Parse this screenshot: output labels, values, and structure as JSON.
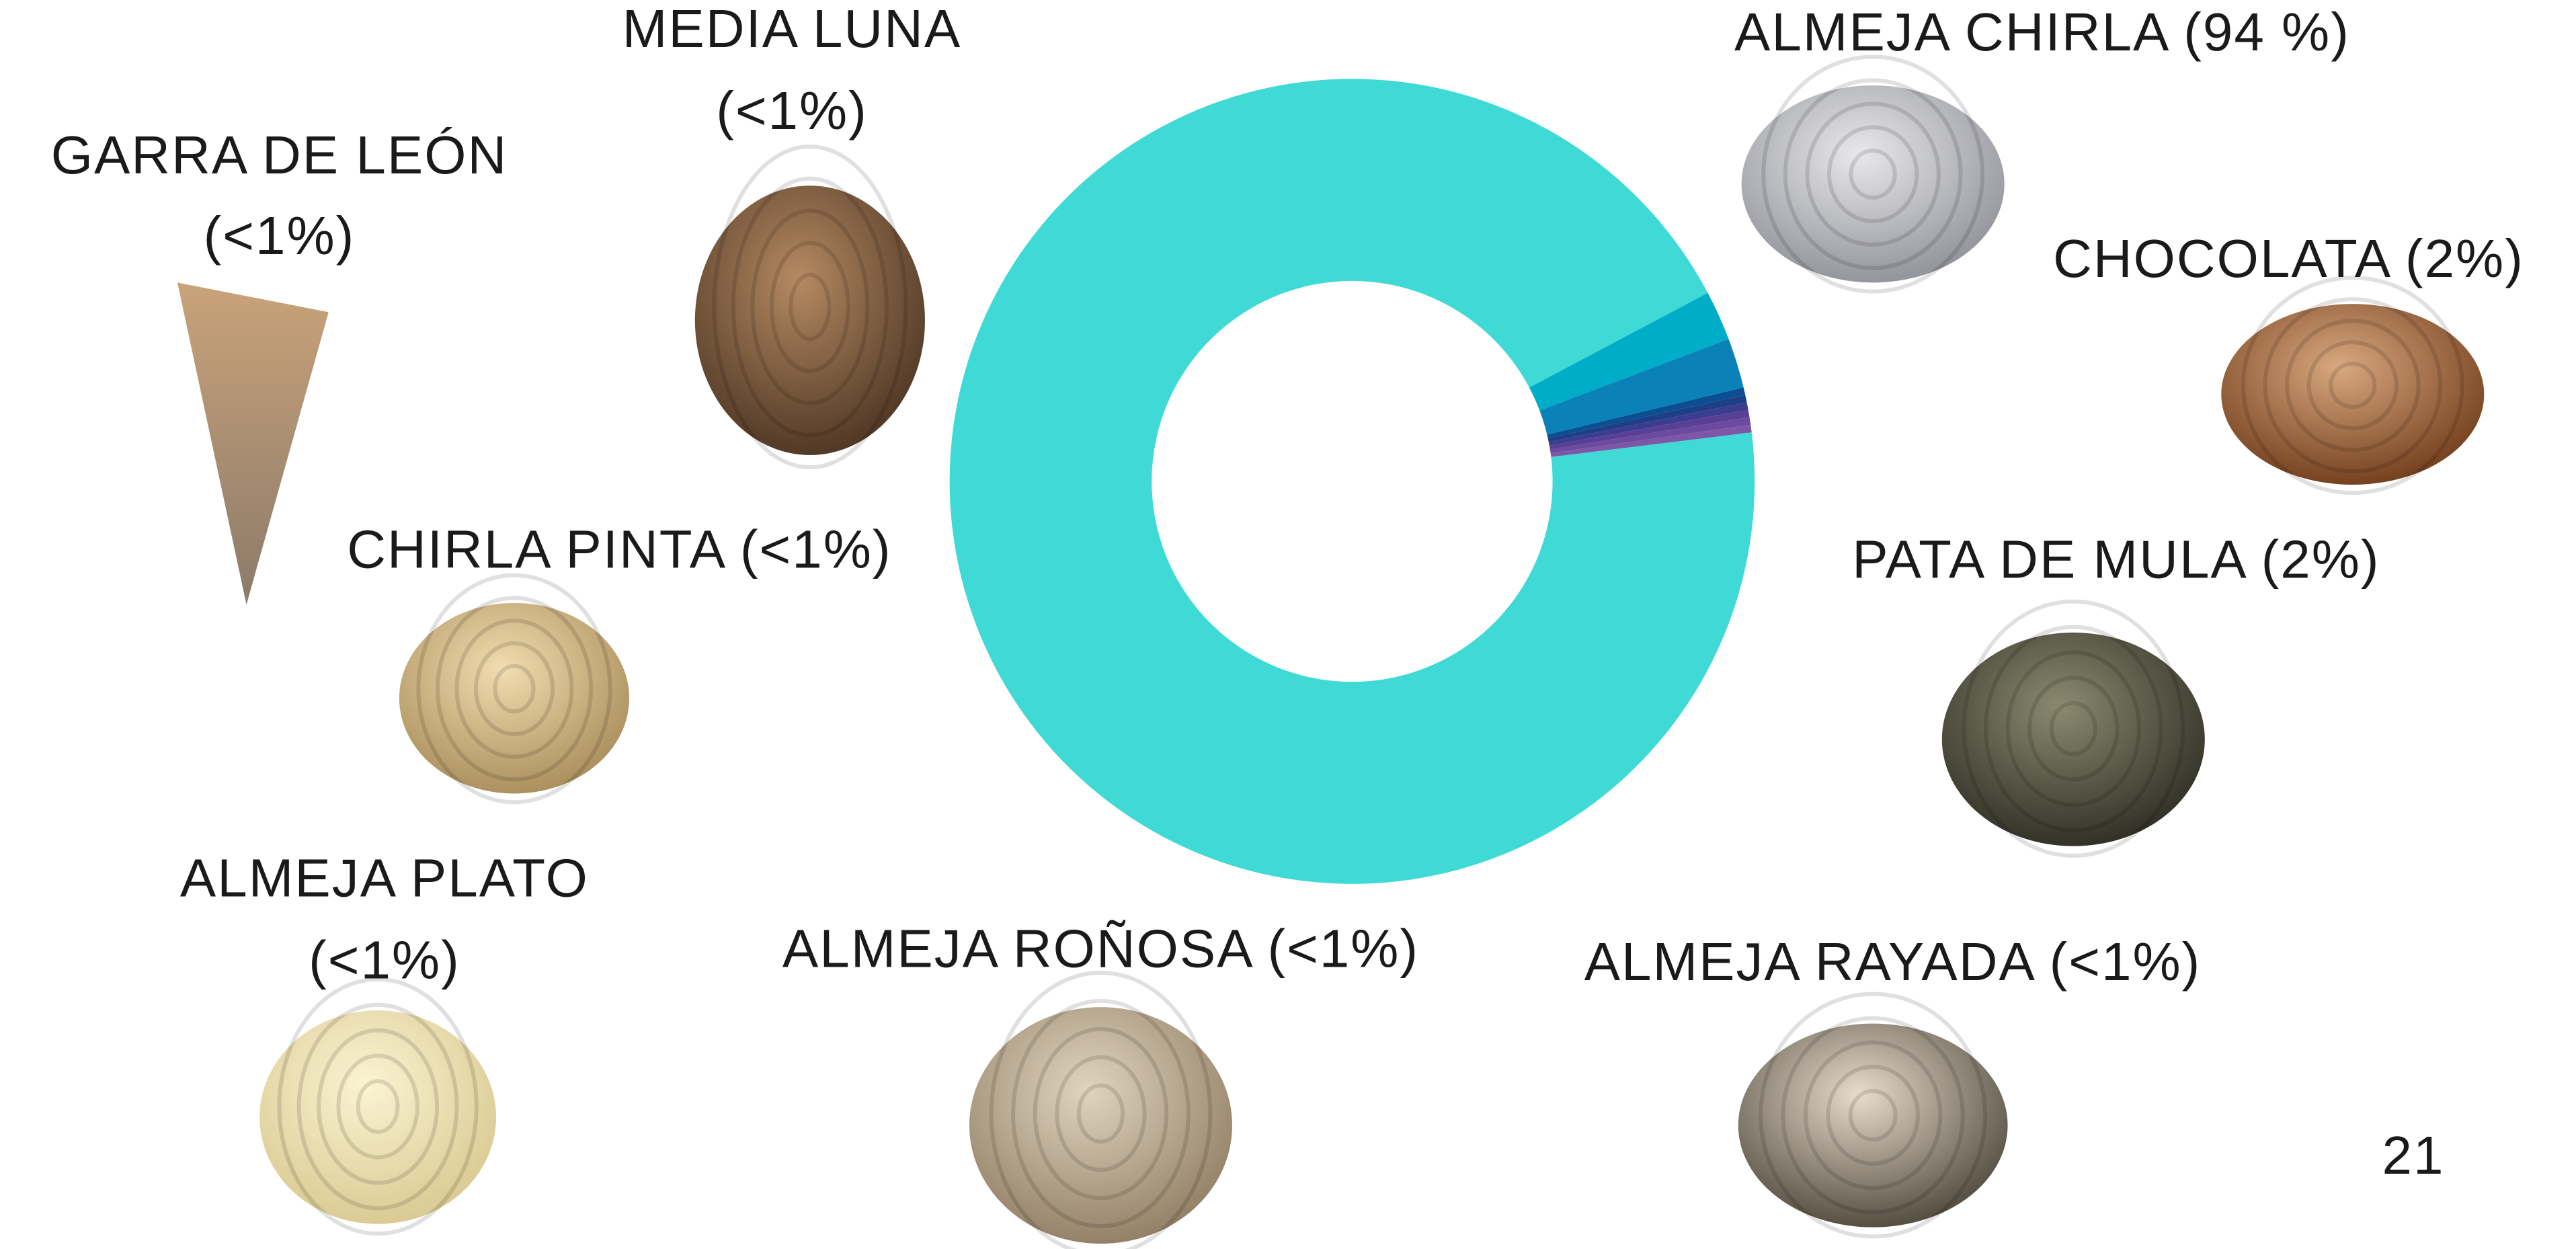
{
  "chart_data": {
    "type": "pie",
    "categories": [
      "ALMEJA CHIRLA",
      "CHOCOLATA",
      "PATA DE MULA",
      "ALMEJA RAYADA",
      "ALMEJA ROÑOSA",
      "ALMEJA PLATO",
      "CHIRLA PINTA",
      "GARRA DE LEÓN",
      "MEDIA LUNA"
    ],
    "values": [
      94,
      2,
      2,
      0.3,
      0.3,
      0.3,
      0.3,
      0.3,
      0.3
    ],
    "value_labels": [
      "(94 %)",
      "(2%)",
      "(2%)",
      "(<1%)",
      "(<1%)",
      "(<1%)",
      "(<1%)",
      "(<1%)",
      "(<1%)"
    ],
    "colors": [
      "#3fd9d6",
      "#00adc8",
      "#0a82b8",
      "#0b4f92",
      "#1d3f86",
      "#3b3d8e",
      "#5a3f96",
      "#6b4aa0",
      "#7d56a8"
    ],
    "donut": true
  },
  "page_number": "21"
}
